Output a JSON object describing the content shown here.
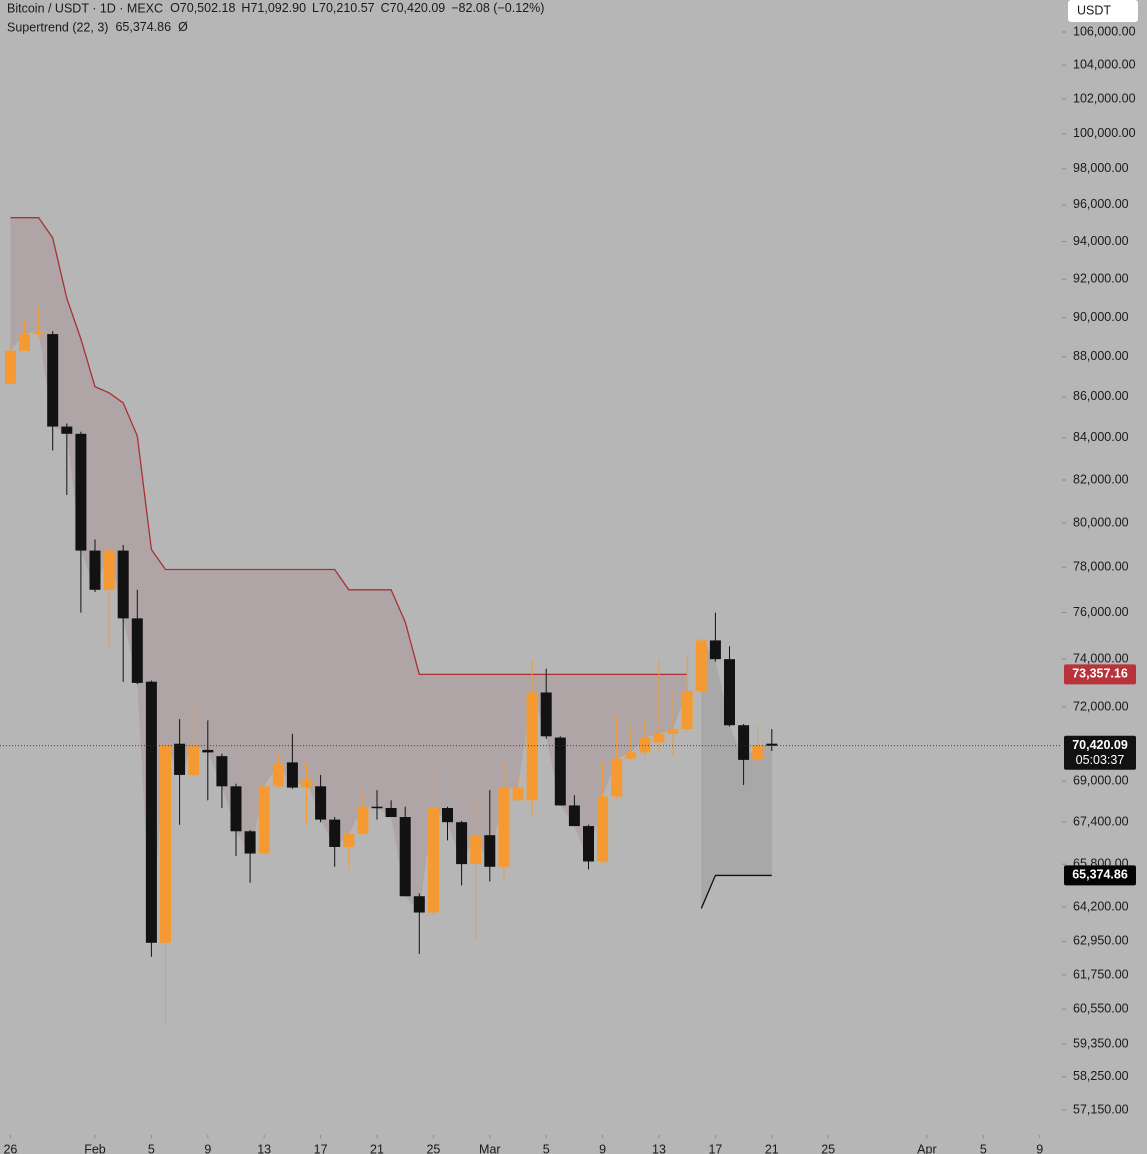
{
  "chart_data": {
    "type": "candlestick",
    "header": {
      "symbol": "Bitcoin / USDT · 1D · MEXC",
      "ohlc_keys": [
        "O",
        "H",
        "L",
        "C"
      ],
      "ohlc_values": [
        "70,502.18",
        "71,092.90",
        "70,210.57",
        "70,420.09"
      ],
      "change": "−82.08 (−0.12%)",
      "indicator": "Supertrend (22, 3)",
      "indicator_value": "65,374.86",
      "indicator_icon": "Ø"
    },
    "currency_button": "USDT",
    "log_scale": true,
    "ylim": [
      56340,
      107960
    ],
    "yticks": [
      {
        "value": 106000,
        "label": "106,000.00"
      },
      {
        "value": 104000,
        "label": "104,000.00"
      },
      {
        "value": 102000,
        "label": "102,000.00"
      },
      {
        "value": 100000,
        "label": "100,000.00"
      },
      {
        "value": 98000,
        "label": "98,000.00"
      },
      {
        "value": 96000,
        "label": "96,000.00"
      },
      {
        "value": 94000,
        "label": "94,000.00"
      },
      {
        "value": 92000,
        "label": "92,000.00"
      },
      {
        "value": 90000,
        "label": "90,000.00"
      },
      {
        "value": 88000,
        "label": "88,000.00"
      },
      {
        "value": 86000,
        "label": "86,000.00"
      },
      {
        "value": 84000,
        "label": "84,000.00"
      },
      {
        "value": 82000,
        "label": "82,000.00"
      },
      {
        "value": 80000,
        "label": "80,000.00"
      },
      {
        "value": 78000,
        "label": "78,000.00"
      },
      {
        "value": 76000,
        "label": "76,000.00"
      },
      {
        "value": 74000,
        "label": "74,000.00"
      },
      {
        "value": 72000,
        "label": "72,000.00"
      },
      {
        "value": 69000,
        "label": "69,000.00"
      },
      {
        "value": 67400,
        "label": "67,400.00"
      },
      {
        "value": 65800,
        "label": "65,800.00"
      },
      {
        "value": 64200,
        "label": "64,200.00"
      },
      {
        "value": 62950,
        "label": "62,950.00"
      },
      {
        "value": 61750,
        "label": "61,750.00"
      },
      {
        "value": 60550,
        "label": "60,550.00"
      },
      {
        "value": 59350,
        "label": "59,350.00"
      },
      {
        "value": 58250,
        "label": "58,250.00"
      },
      {
        "value": 57150,
        "label": "57,150.00"
      }
    ],
    "xticks": [
      {
        "value": "01-26",
        "label": "26"
      },
      {
        "value": "02-01",
        "label": "Feb"
      },
      {
        "value": "02-05",
        "label": "5"
      },
      {
        "value": "02-09",
        "label": "9"
      },
      {
        "value": "02-13",
        "label": "13"
      },
      {
        "value": "02-17",
        "label": "17"
      },
      {
        "value": "02-21",
        "label": "21"
      },
      {
        "value": "02-25",
        "label": "25"
      },
      {
        "value": "03-01",
        "label": "Mar"
      },
      {
        "value": "03-05",
        "label": "5"
      },
      {
        "value": "03-09",
        "label": "9"
      },
      {
        "value": "03-13",
        "label": "13"
      },
      {
        "value": "03-17",
        "label": "17"
      },
      {
        "value": "03-21",
        "label": "21"
      },
      {
        "value": "03-25",
        "label": "25"
      },
      {
        "value": "04-01",
        "label": "Apr"
      },
      {
        "value": "04-05",
        "label": "5"
      },
      {
        "value": "04-09",
        "label": "9"
      }
    ],
    "x": [
      "01-26",
      "01-27",
      "01-28",
      "01-29",
      "01-30",
      "01-31",
      "02-01",
      "02-02",
      "02-03",
      "02-04",
      "02-05",
      "02-06",
      "02-07",
      "02-08",
      "02-09",
      "02-10",
      "02-11",
      "02-12",
      "02-13",
      "02-14",
      "02-15",
      "02-16",
      "02-17",
      "02-18",
      "02-19",
      "02-20",
      "02-21",
      "02-22",
      "02-23",
      "02-24",
      "02-25",
      "02-26",
      "02-27",
      "02-28",
      "03-01",
      "03-02",
      "03-03",
      "03-04",
      "03-05",
      "03-06",
      "03-07",
      "03-08",
      "03-09",
      "03-10",
      "03-11",
      "03-12",
      "03-13",
      "03-14",
      "03-15",
      "03-16",
      "03-17",
      "03-18",
      "03-19",
      "03-20",
      "03-21"
    ],
    "open": [
      86650,
      88300,
      89150,
      89150,
      84550,
      84200,
      78750,
      77000,
      78750,
      75750,
      73050,
      62900,
      70500,
      69250,
      70250,
      70000,
      68800,
      67050,
      66200,
      68800,
      69750,
      68750,
      68800,
      67500,
      66450,
      66950,
      68000,
      67950,
      67600,
      64600,
      64000,
      67950,
      67400,
      65800,
      66900,
      65700,
      68250,
      68250,
      72600,
      70750,
      68050,
      67250,
      65900,
      68400,
      69900,
      70150,
      70550,
      70900,
      71100,
      72650,
      74800,
      74000,
      71250,
      69850,
      70502.18
    ],
    "high": [
      88500,
      89850,
      90500,
      89300,
      84700,
      84300,
      79250,
      79000,
      79000,
      77000,
      73100,
      71500,
      71500,
      72250,
      71450,
      70100,
      68900,
      67100,
      68800,
      70100,
      70900,
      69800,
      69250,
      67600,
      66600,
      68650,
      68650,
      68250,
      68000,
      64700,
      69800,
      68000,
      67450,
      68250,
      68650,
      69800,
      69250,
      74000,
      73600,
      70800,
      68450,
      67300,
      69800,
      71650,
      71250,
      71450,
      74000,
      72650,
      74200,
      74950,
      76000,
      74550,
      71300,
      71250,
      71092.9
    ],
    "low": [
      86650,
      88300,
      89000,
      83400,
      81300,
      76000,
      76900,
      74550,
      73050,
      72950,
      62400,
      60000,
      67300,
      69200,
      68250,
      67950,
      66100,
      65100,
      66200,
      68700,
      68700,
      67300,
      67400,
      65700,
      65600,
      66900,
      67500,
      67600,
      64600,
      62500,
      63900,
      66700,
      65000,
      63000,
      65150,
      65150,
      68200,
      67650,
      70700,
      68050,
      67250,
      65600,
      65800,
      68300,
      69800,
      70000,
      70200,
      70000,
      71000,
      72500,
      73900,
      71200,
      68850,
      69450,
      70210.57
    ],
    "close": [
      88300,
      89150,
      89300,
      84550,
      84200,
      78750,
      77000,
      78750,
      75750,
      73000,
      62900,
      70450,
      69250,
      70450,
      70150,
      68800,
      67050,
      66200,
      68800,
      69700,
      68750,
      69050,
      67500,
      66450,
      66950,
      68000,
      67950,
      67600,
      64600,
      64000,
      67950,
      67400,
      65800,
      66900,
      65700,
      68750,
      68750,
      72600,
      70800,
      68050,
      67250,
      65900,
      68400,
      69900,
      70150,
      70750,
      70900,
      71100,
      72650,
      74800,
      74000,
      71250,
      69850,
      70450,
      70420.09
    ],
    "up_color": "#f59a32",
    "down_color": "#121212",
    "supertrend": [
      {
        "name": "upper",
        "color": "#a83232",
        "fill": "rgba(150,90,95,0.18)",
        "values": [
          95300,
          95300,
          95300,
          94200,
          91000,
          88900,
          86500,
          86200,
          85700,
          84100,
          78800,
          77900,
          77900,
          77900,
          77900,
          77900,
          77900,
          77900,
          77900,
          77900,
          77900,
          77900,
          77900,
          77900,
          77000,
          77000,
          77000,
          77000,
          75600,
          73357.16,
          73357.16,
          73357.16,
          73357.16,
          73357.16,
          73357.16,
          73357.16,
          73357.16,
          73357.16,
          73357.16,
          73357.16,
          73357.16,
          73357.16,
          73357.16,
          73357.16,
          73357.16,
          73357.16,
          73357.16,
          73357.16,
          73357.16,
          null,
          null,
          null,
          null,
          null,
          null
        ]
      },
      {
        "name": "lower",
        "color": "#111111",
        "fill": "rgba(150,150,150,0.45)",
        "values": [
          null,
          null,
          null,
          null,
          null,
          null,
          null,
          null,
          null,
          null,
          null,
          null,
          null,
          null,
          null,
          null,
          null,
          null,
          null,
          null,
          null,
          null,
          null,
          null,
          null,
          null,
          null,
          null,
          null,
          null,
          null,
          null,
          null,
          null,
          null,
          null,
          null,
          null,
          null,
          null,
          null,
          null,
          null,
          null,
          null,
          null,
          null,
          null,
          null,
          64150,
          65374.86,
          65374.86,
          65374.86,
          65374.86,
          65374.86
        ]
      }
    ],
    "price_labels": [
      {
        "value": 73357.16,
        "label": "73,357.16",
        "color": "#b8333a"
      },
      {
        "value": 70420.09,
        "label": "70,420.09",
        "sublabel": "05:03:37",
        "color": "#111111"
      },
      {
        "value": 65374.86,
        "label": "65,374.86",
        "color": "#050505"
      }
    ],
    "background": "#b6b6b6"
  }
}
